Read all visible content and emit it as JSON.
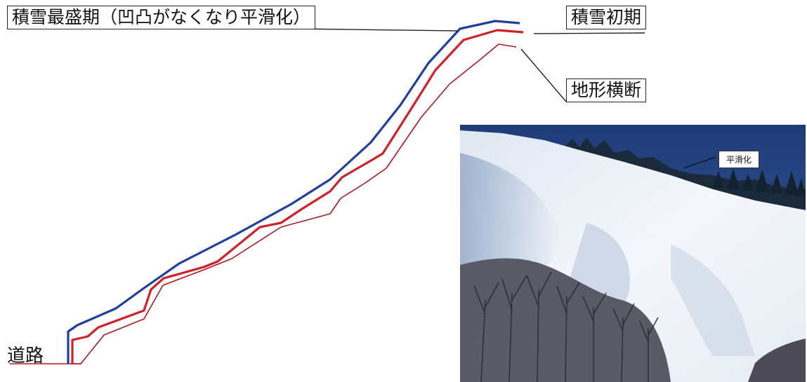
{
  "labels": {
    "peak_snow": "積雪最盛期（凹凸がなくなり平滑化）",
    "early_snow": "積雪初期",
    "terrain": "地形横断",
    "road": "道路",
    "photo_smoothing": "平滑化"
  },
  "colors": {
    "peak_line": "#1f3fa0",
    "early_line": "#d0202a",
    "terrain_line": "#b01820",
    "sky": "#2a4a86",
    "snow": "#eef2f7"
  }
}
